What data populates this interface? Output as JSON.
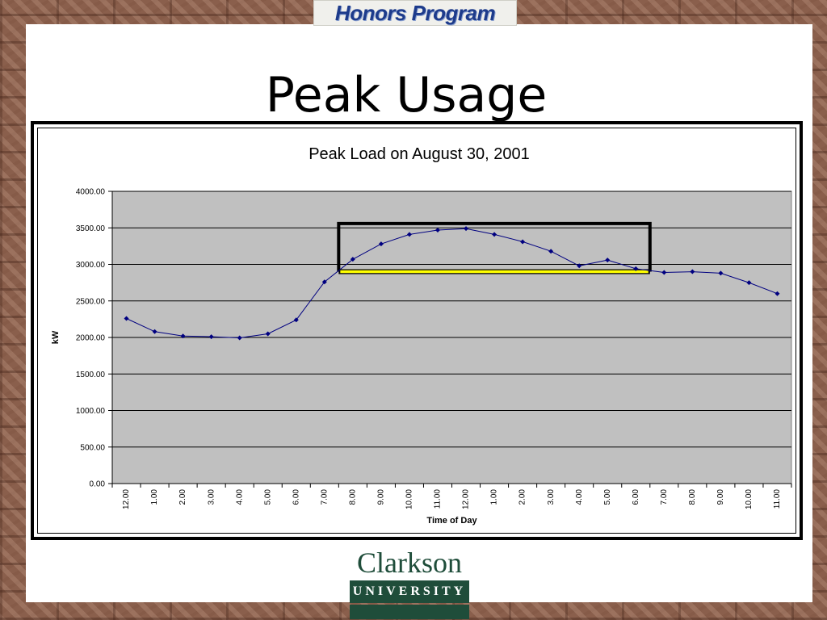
{
  "slide": {
    "banner_text": "Honors Program",
    "title": "Peak Usage",
    "logo": {
      "wordmark": "Clarkson",
      "subtitle": "UNIVERSITY"
    }
  },
  "colors": {
    "plot_background": "#c0c0c0",
    "series_line": "#000080",
    "baseline_highlight": "#ffff00",
    "peak_box": "#000000",
    "banner_text": "#1d3b8b",
    "logo_green": "#1f4d3a"
  },
  "chart_data": {
    "type": "line",
    "title": "Peak Load on August 30, 2001",
    "xlabel": "Time of Day",
    "ylabel": "kW",
    "ylim": [
      0,
      4000
    ],
    "yticks": [
      "0.00",
      "500.00",
      "1000.00",
      "1500.00",
      "2000.00",
      "2500.00",
      "3000.00",
      "3500.00",
      "4000.00"
    ],
    "categories": [
      "12.00",
      "1.00",
      "2.00",
      "3.00",
      "4.00",
      "5.00",
      "6.00",
      "7.00",
      "8.00",
      "9.00",
      "10.00",
      "11.00",
      "12.00",
      "1.00",
      "2.00",
      "3.00",
      "4.00",
      "5.00",
      "6.00",
      "7.00",
      "8.00",
      "9.00",
      "10.00",
      "11.00"
    ],
    "series": [
      {
        "values": [
          2260,
          2080,
          2020,
          2010,
          1995,
          2050,
          2240,
          2760,
          3070,
          3280,
          3410,
          3470,
          3490,
          3410,
          3310,
          3180,
          2980,
          3060,
          2940,
          2890,
          2900,
          2880,
          2750,
          2600
        ]
      }
    ],
    "grid": true,
    "legend": "none",
    "annotations": [
      {
        "type": "peak-period-box",
        "x_from": 7.5,
        "x_to": 18.5,
        "y_from": 2900,
        "y_to": 3560
      },
      {
        "type": "baseline-highlight",
        "x_from": 7.5,
        "x_to": 18.5,
        "y": 2900
      }
    ]
  }
}
